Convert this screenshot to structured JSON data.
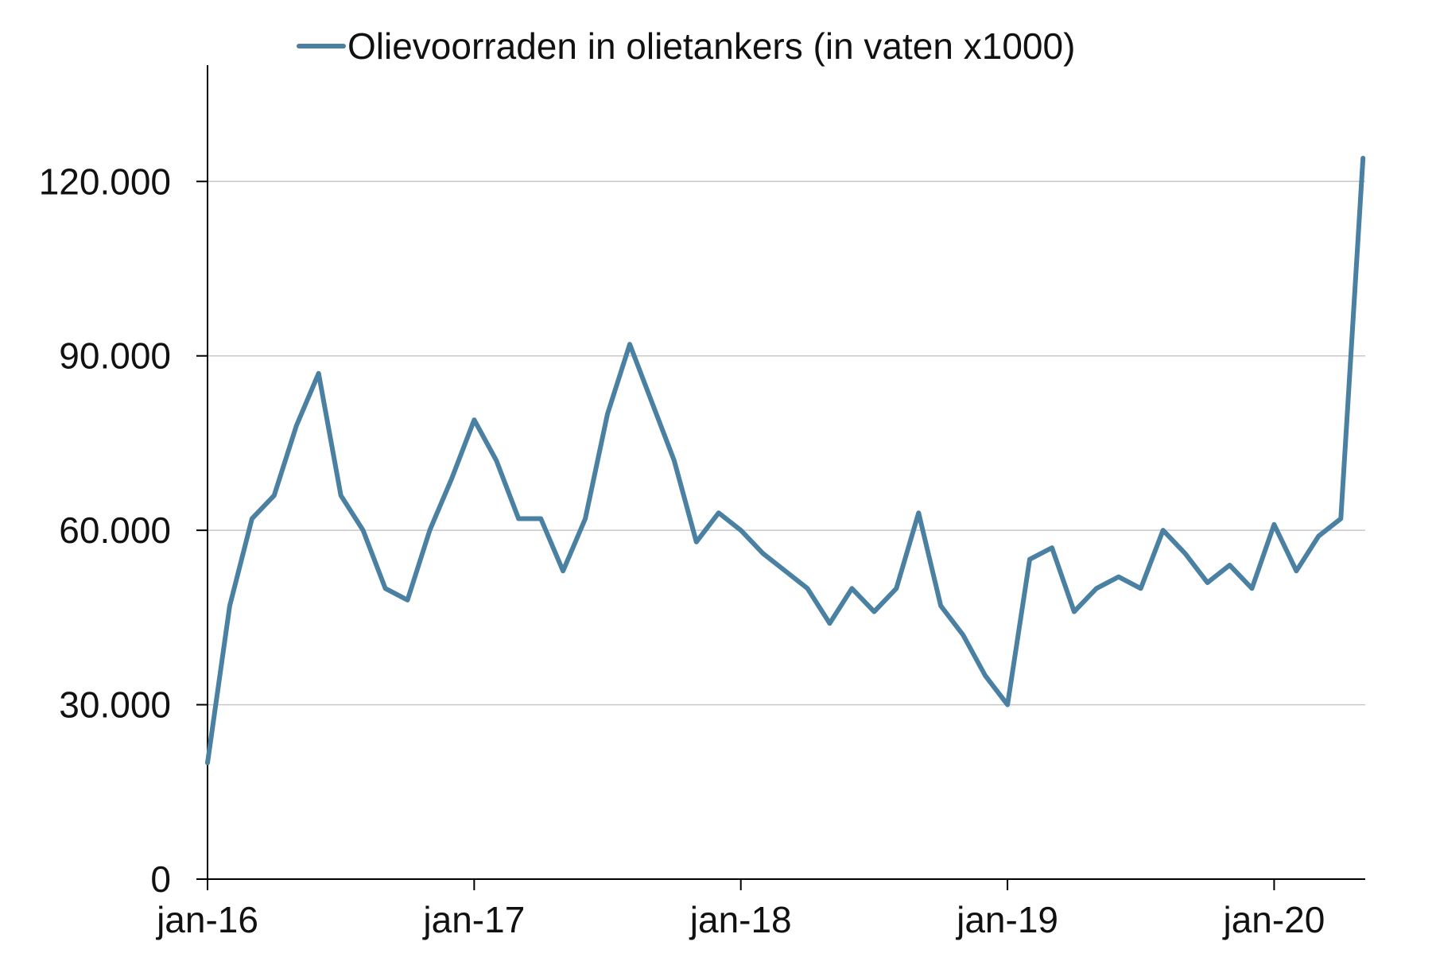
{
  "chart_data": {
    "type": "line",
    "legend": {
      "position": "top-center",
      "entries": [
        "Olievoorraden in olietankers (in vaten x1000)"
      ]
    },
    "grid": true,
    "colors": {
      "series": "#4a80a2",
      "grid": "#c8c8c8",
      "axis": "#000000"
    },
    "xlabel": "",
    "ylabel": "",
    "x_ticks": [
      "jan-16",
      "jan-17",
      "jan-18",
      "jan-19",
      "jan-20"
    ],
    "y_ticks": [
      "0",
      "30.000",
      "60.000",
      "90.000",
      "120.000"
    ],
    "y_tick_values": [
      0,
      30000,
      60000,
      90000,
      120000
    ],
    "xlim": [
      "2016-01",
      "2020-05"
    ],
    "ylim": [
      0,
      140000
    ],
    "series": [
      {
        "name": "Olievoorraden in olietankers (in vaten x1000)",
        "x": [
          "2016-01",
          "2016-02",
          "2016-03",
          "2016-04",
          "2016-05",
          "2016-06",
          "2016-07",
          "2016-08",
          "2016-09",
          "2016-10",
          "2016-11",
          "2016-12",
          "2017-01",
          "2017-02",
          "2017-03",
          "2017-04",
          "2017-05",
          "2017-06",
          "2017-07",
          "2017-08",
          "2017-09",
          "2017-10",
          "2017-11",
          "2017-12",
          "2018-01",
          "2018-02",
          "2018-03",
          "2018-04",
          "2018-05",
          "2018-06",
          "2018-07",
          "2018-08",
          "2018-09",
          "2018-10",
          "2018-11",
          "2018-12",
          "2019-01",
          "2019-02",
          "2019-03",
          "2019-04",
          "2019-05",
          "2019-06",
          "2019-07",
          "2019-08",
          "2019-09",
          "2019-10",
          "2019-11",
          "2019-12",
          "2020-01",
          "2020-02",
          "2020-03",
          "2020-04",
          "2020-05"
        ],
        "values": [
          20000,
          47000,
          62000,
          66000,
          78000,
          87000,
          66000,
          60000,
          50000,
          48000,
          60000,
          69000,
          79000,
          72000,
          62000,
          62000,
          53000,
          62000,
          80000,
          92000,
          82000,
          72000,
          58000,
          63000,
          60000,
          56000,
          53000,
          50000,
          44000,
          50000,
          46000,
          50000,
          63000,
          47000,
          42000,
          35000,
          30000,
          55000,
          57000,
          46000,
          50000,
          52000,
          50000,
          60000,
          56000,
          51000,
          54000,
          50000,
          61000,
          53000,
          59000,
          62000,
          124000
        ]
      }
    ]
  }
}
